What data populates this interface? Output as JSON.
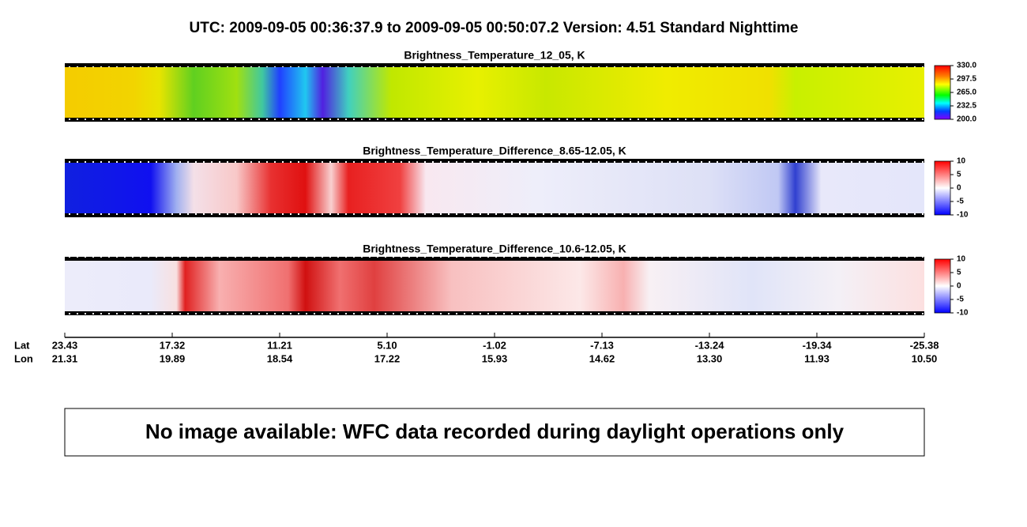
{
  "header": {
    "title": "UTC:  2009-09-05   00:36:37.9  to  2009-09-05   00:50:07.2    Version: 4.51  Standard Nighttime"
  },
  "panels": [
    {
      "title": "Brightness_Temperature_12_05, K",
      "colorbar_ticks": [
        "330.0",
        "297.5",
        "265.0",
        "232.5",
        "200.0"
      ]
    },
    {
      "title": "Brightness_Temperature_Difference_8.65-12.05, K",
      "colorbar_ticks": [
        "10",
        "5",
        "0",
        "-5",
        "-10"
      ]
    },
    {
      "title": "Brightness_Temperature_Difference_10.6-12.05, K",
      "colorbar_ticks": [
        "10",
        "5",
        "0",
        "-5",
        "-10"
      ]
    }
  ],
  "axis": {
    "lat_name": "Lat",
    "lon_name": "Lon",
    "lat": [
      "23.43",
      "17.32",
      "11.21",
      "5.10",
      "-1.02",
      "-7.13",
      "-13.24",
      "-19.34",
      "-25.38"
    ],
    "lon": [
      "21.31",
      "19.89",
      "18.54",
      "17.22",
      "15.93",
      "14.62",
      "13.30",
      "11.93",
      "10.50"
    ]
  },
  "message": "No image available: WFC data recorded during daylight operations only"
}
